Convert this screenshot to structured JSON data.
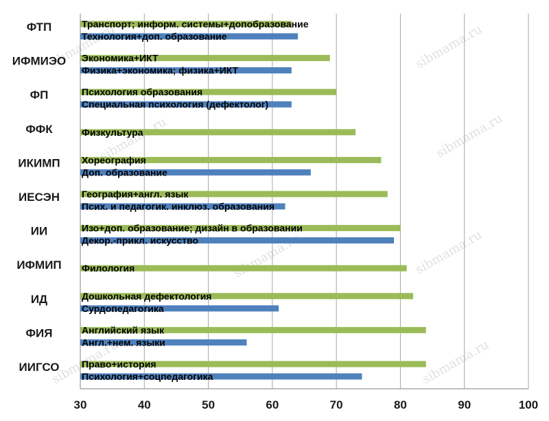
{
  "chart_data": {
    "type": "bar",
    "orientation": "horizontal",
    "xlim": [
      30,
      100
    ],
    "x_ticks": [
      30,
      40,
      50,
      60,
      70,
      80,
      90,
      100
    ],
    "grid": true,
    "legend": "none",
    "colors": {
      "green": "#9bbb59",
      "blue": "#4f81bd"
    },
    "groups": [
      {
        "label": "ФТП",
        "bars": [
          {
            "series": "green",
            "label": "Транспорт; информ. системы+допобразование",
            "value": 63
          },
          {
            "series": "blue",
            "label": "Технология+доп. образование",
            "value": 64
          }
        ]
      },
      {
        "label": "ИФМИЭО",
        "bars": [
          {
            "series": "green",
            "label": "Экономика+ИКТ",
            "value": 69
          },
          {
            "series": "blue",
            "label": "Физика+экономика; физика+ИКТ",
            "value": 63
          }
        ]
      },
      {
        "label": "ФП",
        "bars": [
          {
            "series": "green",
            "label": "Психология образования",
            "value": 70
          },
          {
            "series": "blue",
            "label": "Специальная психология (дефектолог)",
            "value": 63
          }
        ]
      },
      {
        "label": "ФФК",
        "bars": [
          {
            "series": "green",
            "label": "Физкультура",
            "value": 73
          }
        ]
      },
      {
        "label": "ИКИМП",
        "bars": [
          {
            "series": "green",
            "label": "Хореография",
            "value": 77
          },
          {
            "series": "blue",
            "label": "Доп. образование",
            "value": 66
          }
        ]
      },
      {
        "label": "ИЕСЭН",
        "bars": [
          {
            "series": "green",
            "label": "География+англ. язык",
            "value": 78
          },
          {
            "series": "blue",
            "label": "Псих. и педагогик. инклюз. образования",
            "value": 62
          }
        ]
      },
      {
        "label": "ИИ",
        "bars": [
          {
            "series": "green",
            "label": "Изо+доп. образование; дизайн в образовании",
            "value": 80
          },
          {
            "series": "blue",
            "label": "Декор.-прикл. искусство",
            "value": 79
          }
        ]
      },
      {
        "label": "ИФМИП",
        "bars": [
          {
            "series": "green",
            "label": "Филология",
            "value": 81
          }
        ]
      },
      {
        "label": "ИД",
        "bars": [
          {
            "series": "green",
            "label": "Дошкольная дефектология",
            "value": 82
          },
          {
            "series": "blue",
            "label": "Сурдопедагогика",
            "value": 61
          }
        ]
      },
      {
        "label": "ФИЯ",
        "bars": [
          {
            "series": "green",
            "label": "Английский язык",
            "value": 84
          },
          {
            "series": "blue",
            "label": "Англ.+нем. языки",
            "value": 56
          }
        ]
      },
      {
        "label": "ИИГСО",
        "bars": [
          {
            "series": "green",
            "label": "Право+история",
            "value": 84
          },
          {
            "series": "blue",
            "label": "Психология+соцпедагогика",
            "value": 74
          }
        ]
      }
    ]
  },
  "watermark": "sibmama.ru"
}
